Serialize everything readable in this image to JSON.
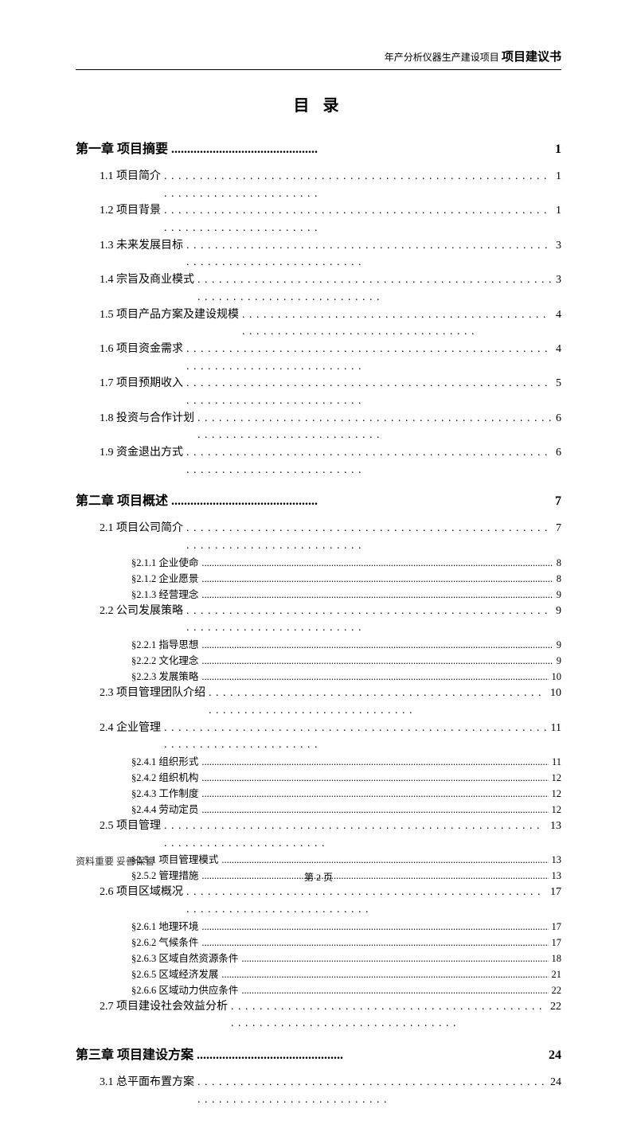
{
  "header": {
    "small": "年产分析仪器生产建设项目",
    "big": "项目建议书"
  },
  "title": "目 录",
  "footer": {
    "note": "资料重要  妥善保管",
    "pagenum": "第 2 页"
  },
  "chapters": [
    {
      "label": "第一章 项目摘要",
      "page": "1",
      "sections": [
        {
          "label": "1.1 项目简介",
          "page": "1"
        },
        {
          "label": "1.2 项目背景",
          "page": "1"
        },
        {
          "label": "1.3 未来发展目标",
          "page": "3"
        },
        {
          "label": "1.4 宗旨及商业模式",
          "page": "3"
        },
        {
          "label": "1.5 项目产品方案及建设规模",
          "page": "4"
        },
        {
          "label": "1.6 项目资金需求",
          "page": "4"
        },
        {
          "label": "1.7 项目预期收入",
          "page": "5"
        },
        {
          "label": "1.8 投资与合作计划",
          "page": "6"
        },
        {
          "label": "1.9 资金退出方式",
          "page": "6"
        }
      ]
    },
    {
      "label": "第二章 项目概述",
      "page": "7",
      "sections": [
        {
          "label": "2.1 项目公司简介",
          "page": "7",
          "subs": [
            {
              "label": "§2.1.1 企业使命",
              "page": "8"
            },
            {
              "label": "§2.1.2 企业愿景",
              "page": "8"
            },
            {
              "label": "§2.1.3 经营理念",
              "page": "9"
            }
          ]
        },
        {
          "label": "2.2 公司发展策略",
          "page": "9",
          "subs": [
            {
              "label": "§2.2.1 指导思想",
              "page": "9"
            },
            {
              "label": "§2.2.2 文化理念",
              "page": "9"
            },
            {
              "label": "§2.2.3 发展策略",
              "page": "10"
            }
          ]
        },
        {
          "label": "2.3 项目管理团队介绍",
          "page": "10"
        },
        {
          "label": "2.4 企业管理",
          "page": "11",
          "subs": [
            {
              "label": "§2.4.1 组织形式",
              "page": "11"
            },
            {
              "label": "§2.4.2 组织机构",
              "page": "12"
            },
            {
              "label": "§2.4.3 工作制度",
              "page": "12"
            },
            {
              "label": "§2.4.4 劳动定员",
              "page": "12"
            }
          ]
        },
        {
          "label": "2.5 项目管理",
          "page": "13",
          "subs": [
            {
              "label": "§2.5.1 项目管理模式",
              "page": "13"
            },
            {
              "label": "§2.5.2 管理措施",
              "page": "13"
            }
          ]
        },
        {
          "label": "2.6 项目区域概况",
          "page": "17",
          "subs": [
            {
              "label": "§2.6.1 地理环境",
              "page": "17"
            },
            {
              "label": "§2.6.2 气候条件",
              "page": "17"
            },
            {
              "label": "§2.6.3 区域自然资源条件",
              "page": "18"
            },
            {
              "label": "§2.6.5 区域经济发展",
              "page": "21"
            },
            {
              "label": "§2.6.6 区域动力供应条件",
              "page": "22"
            }
          ]
        },
        {
          "label": "2.7 项目建设社会效益分析",
          "page": "22"
        }
      ]
    },
    {
      "label": "第三章 项目建设方案",
      "page": "24",
      "sections": [
        {
          "label": "3.1 总平面布置方案",
          "page": "24"
        }
      ]
    }
  ],
  "style": {
    "dots_bold": "..............................................",
    "dots_reg": ". . . . . . . . . . . . . . . . . . . . . . . . . . . . . . . . . . . . . . . . . . . . . . . . . . . . . . . . . . . . . . . . . . . . . . . . . . . .",
    "dots_fine": "..............................................................................................................................................................................."
  }
}
